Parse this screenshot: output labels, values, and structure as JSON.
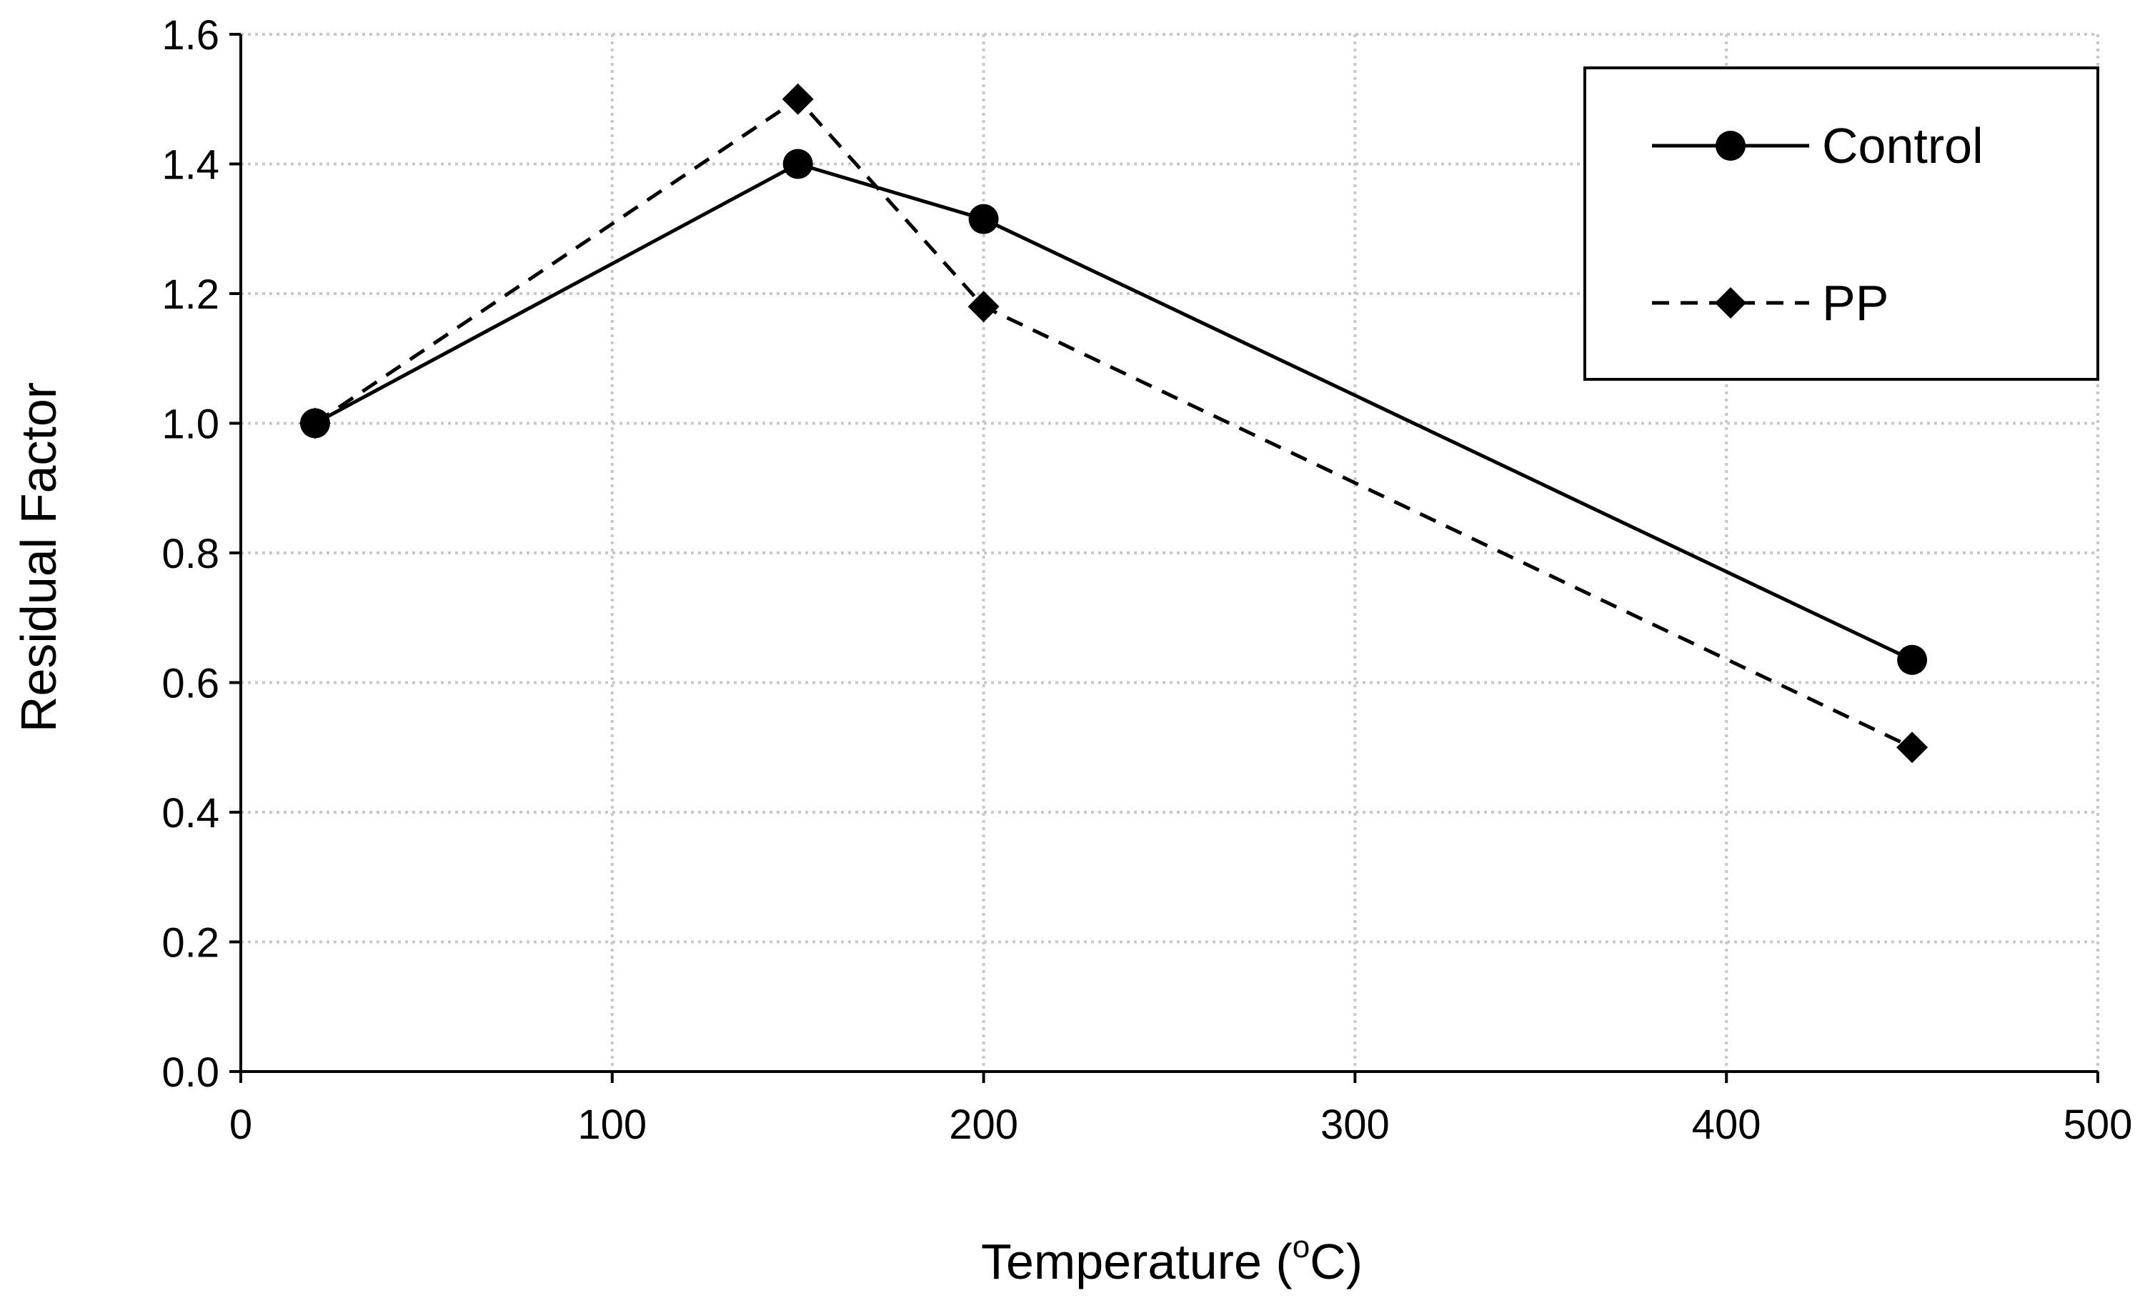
{
  "chart_data": {
    "type": "line",
    "title": "",
    "xlabel": "Temperature (",
    "xlabel_sup": "o",
    "xlabel_suffix": "C)",
    "ylabel": "Residual Factor",
    "xlim": [
      0,
      500
    ],
    "ylim": [
      0,
      1.6
    ],
    "xticks": [
      0,
      100,
      200,
      300,
      400,
      500
    ],
    "yticks": [
      0.0,
      0.2,
      0.4,
      0.6,
      0.8,
      1.0,
      1.2,
      1.4,
      1.6
    ],
    "xtick_labels": [
      "0",
      "100",
      "200",
      "300",
      "400",
      "500"
    ],
    "ytick_labels": [
      "0.0",
      "0.2",
      "0.4",
      "0.6",
      "0.8",
      "1.0",
      "1.2",
      "1.4",
      "1.6"
    ],
    "grid": true,
    "legend_position": "top-right",
    "series": [
      {
        "name": "Control",
        "marker": "circle",
        "line": "solid",
        "x": [
          20,
          150,
          200,
          450
        ],
        "y": [
          1.0,
          1.4,
          1.315,
          0.635
        ]
      },
      {
        "name": "PP",
        "marker": "diamond",
        "line": "dashed",
        "x": [
          20,
          150,
          200,
          450
        ],
        "y": [
          1.0,
          1.5,
          1.18,
          0.5
        ]
      }
    ]
  }
}
